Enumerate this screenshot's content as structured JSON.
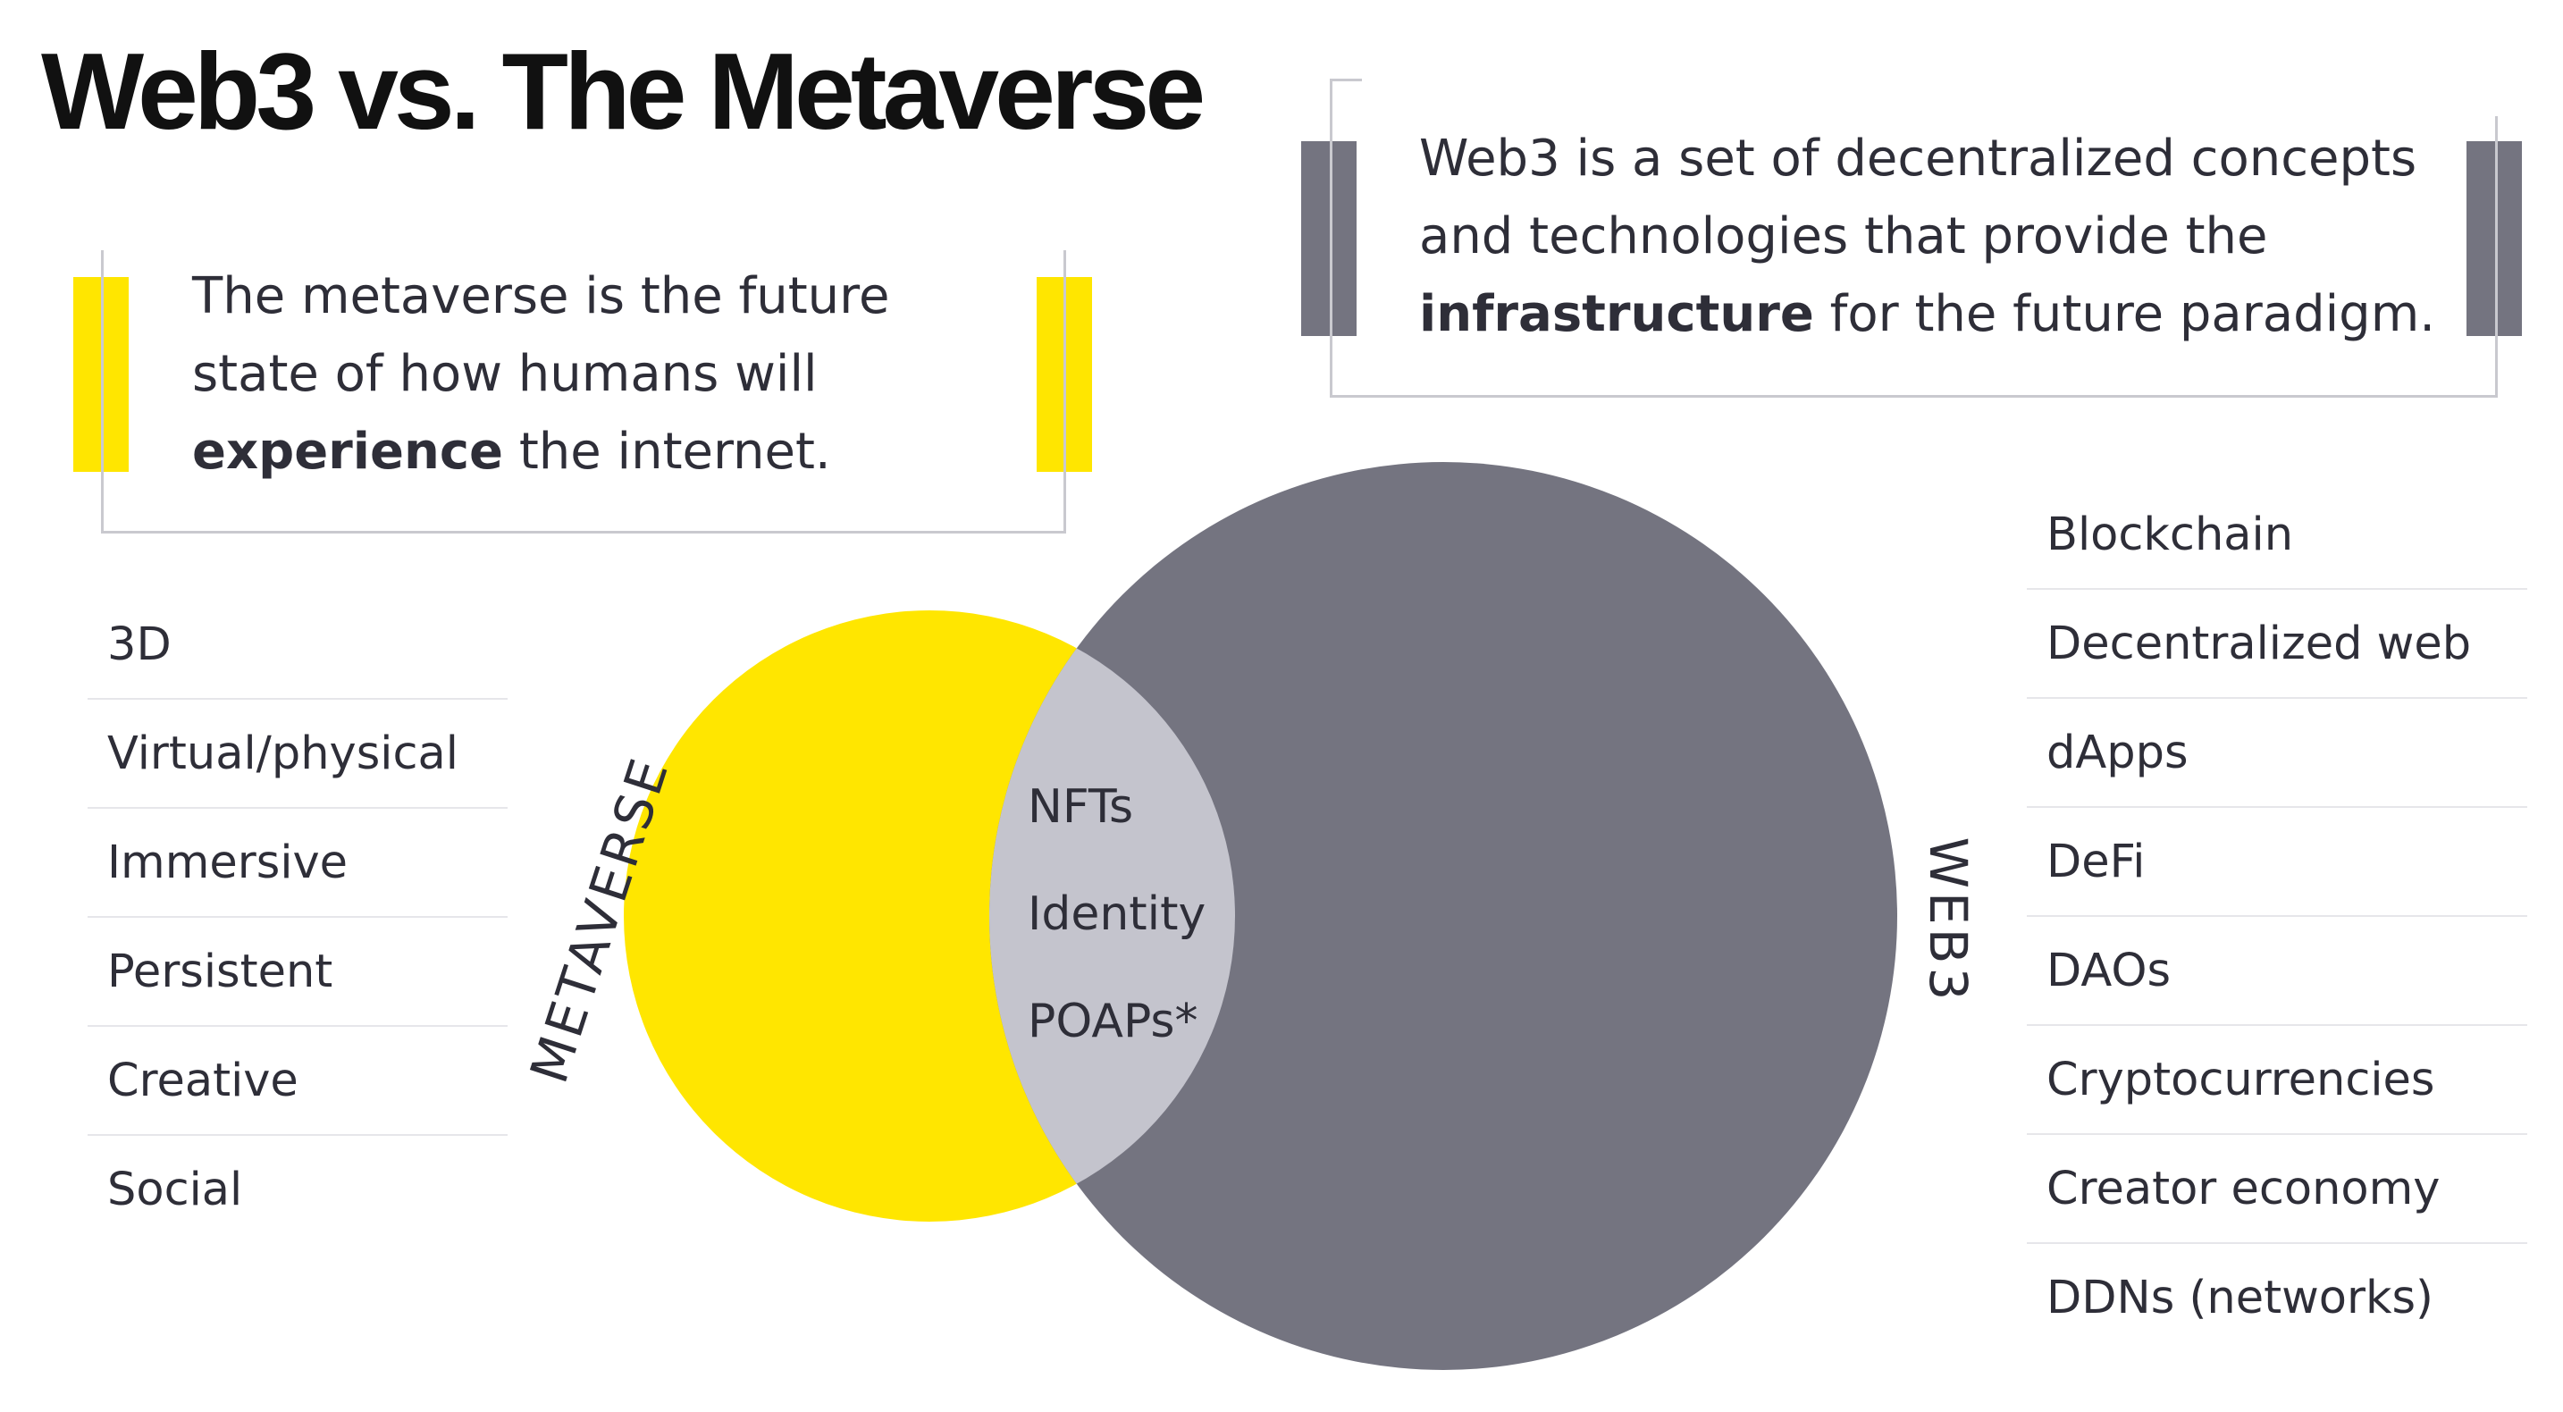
{
  "title": "Web3 vs. The Metaverse",
  "colors": {
    "metaverse": "#ffe600",
    "web3": "#747480",
    "overlap": "#c4c4cd",
    "text": "#2e2e38"
  },
  "metaverse_callout": {
    "line1": "The metaverse is the future",
    "line2": "state of how humans will",
    "bold": "experience",
    "line3_rest": " the internet."
  },
  "web3_callout": {
    "line1": "Web3 is a set of decentralized concepts",
    "line2": "and technologies that provide the",
    "bold": "infrastructure",
    "line3_rest": " for the future paradigm."
  },
  "venn": {
    "left_label": "METAVERSE",
    "right_label": "WEB3",
    "overlap_items": [
      "NFTs",
      "Identity",
      "POAPs*"
    ]
  },
  "metaverse_list": [
    "3D",
    "Virtual/physical",
    "Immersive",
    "Persistent",
    "Creative",
    "Social"
  ],
  "web3_list": [
    "Blockchain",
    "Decentralized web",
    "dApps",
    "DeFi",
    "DAOs",
    "Cryptocurrencies",
    "Creator economy",
    "DDNs (networks)"
  ]
}
